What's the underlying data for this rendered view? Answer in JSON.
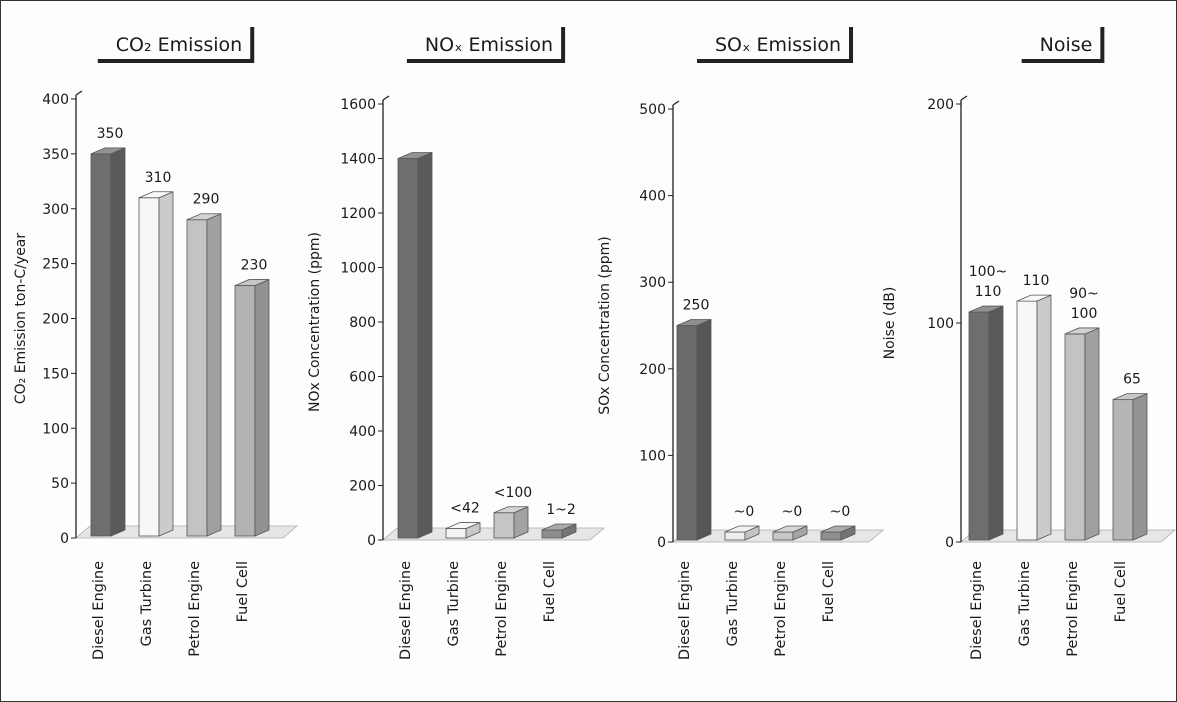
{
  "chart_data": [
    {
      "type": "bar",
      "title": "CO₂ Emission",
      "ylabel": "CO₂ Emission ton-C/year",
      "ylim": [
        0,
        400
      ],
      "yticks": [
        0,
        50,
        100,
        150,
        200,
        250,
        300,
        350,
        400
      ],
      "categories": [
        "Diesel Engine",
        "Gas Turbine",
        "Petrol Engine",
        "Fuel Cell"
      ],
      "values": [
        350,
        310,
        290,
        230
      ],
      "value_labels": [
        "350",
        "310",
        "290",
        "230"
      ],
      "bar_colors": [
        "#6e6e6e",
        "#f7f7f7",
        "#c3c3c3",
        "#b2b2b2"
      ]
    },
    {
      "type": "bar",
      "title": "NOₓ Emission",
      "ylabel": "NOx Concentration (ppm)",
      "ylim": [
        0,
        1600
      ],
      "yticks": [
        0,
        200,
        400,
        600,
        800,
        1000,
        1200,
        1400,
        1600
      ],
      "categories": [
        "Diesel Engine",
        "Gas Turbine",
        "Petrol Engine",
        "Fuel Cell"
      ],
      "values": [
        1400,
        42,
        100,
        2
      ],
      "value_labels": [
        "",
        "<42",
        "<100",
        "1~2"
      ],
      "bar_colors": [
        "#6e6e6e",
        "#f4f4f4",
        "#c6c6c6",
        "#8e8e8e"
      ]
    },
    {
      "type": "bar",
      "title": "SOₓ Emission",
      "ylabel": "SOx Concentration (ppm)",
      "ylim": [
        0,
        500
      ],
      "yticks": [
        0,
        100,
        200,
        300,
        400,
        500
      ],
      "categories": [
        "Diesel Engine",
        "Gas Turbine",
        "Petrol Engine",
        "Fuel Cell"
      ],
      "values": [
        250,
        0,
        0,
        0
      ],
      "value_labels": [
        "250",
        "~0",
        "~0",
        "~0"
      ],
      "bar_colors": [
        "#6a6a6a",
        "#eeeeee",
        "#c8c8c8",
        "#8e8e8e"
      ]
    },
    {
      "type": "bar",
      "title": "Noise",
      "ylabel": "Noise (dB)",
      "ylim": [
        0,
        200
      ],
      "yticks": [
        0,
        100,
        200
      ],
      "categories": [
        "Diesel Engine",
        "Gas Turbine",
        "Petrol Engine",
        "Fuel Cell"
      ],
      "values": [
        105,
        110,
        95,
        65
      ],
      "value_labels": [
        "100~ 110",
        "110",
        "90~ 100",
        "65"
      ],
      "bar_colors": [
        "#6e6e6e",
        "#f7f7f7",
        "#c3c3c3",
        "#b5b5b5"
      ]
    }
  ]
}
